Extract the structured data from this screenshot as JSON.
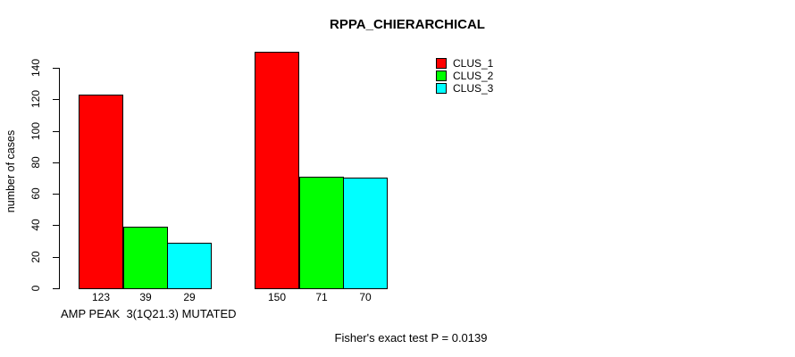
{
  "chart_data": {
    "type": "bar",
    "title": "RPPA_CHIERARCHICAL",
    "ylabel": "number of cases",
    "xlabel": "AMP PEAK  3(1Q21.3) MUTATED",
    "series": [
      {
        "name": "CLUS_1",
        "color": "#ff0000",
        "values": [
          123,
          150
        ]
      },
      {
        "name": "CLUS_2",
        "color": "#00ff00",
        "values": [
          39,
          71
        ]
      },
      {
        "name": "CLUS_3",
        "color": "#00ffff",
        "values": [
          29,
          70
        ]
      }
    ],
    "groups_count": 2,
    "bar_value_labels": [
      [
        "123",
        "39",
        "29"
      ],
      [
        "150",
        "71",
        "70"
      ]
    ],
    "ylim": [
      0,
      140
    ],
    "yticks": [
      0,
      20,
      40,
      60,
      80,
      100,
      120,
      140
    ],
    "grid": false,
    "legend_position": "top-right",
    "axis_color": "#000000",
    "annotation": "Fisher's exact test P = 0.0139"
  }
}
